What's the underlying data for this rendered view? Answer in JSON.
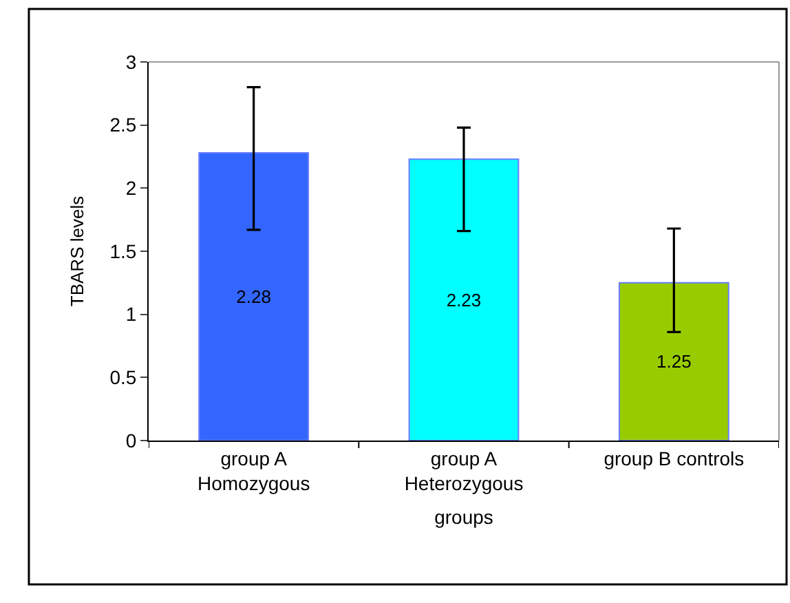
{
  "chart_data": {
    "type": "bar",
    "xlabel": "groups",
    "ylabel": "TBARS levels",
    "categories": [
      "group A\nHomozygous",
      "group A\nHeterozygous",
      "group B controls"
    ],
    "values": [
      2.28,
      2.23,
      1.25
    ],
    "colors": [
      "#3366ff",
      "#00ffff",
      "#99cc00"
    ],
    "errors": [
      [
        1.67,
        2.8
      ],
      [
        1.66,
        2.48
      ],
      [
        0.86,
        1.68
      ]
    ],
    "data_labels": true,
    "ylim": [
      0,
      3
    ],
    "yticks": [
      0,
      0.5,
      1,
      1.5,
      2,
      2.5,
      3
    ]
  }
}
